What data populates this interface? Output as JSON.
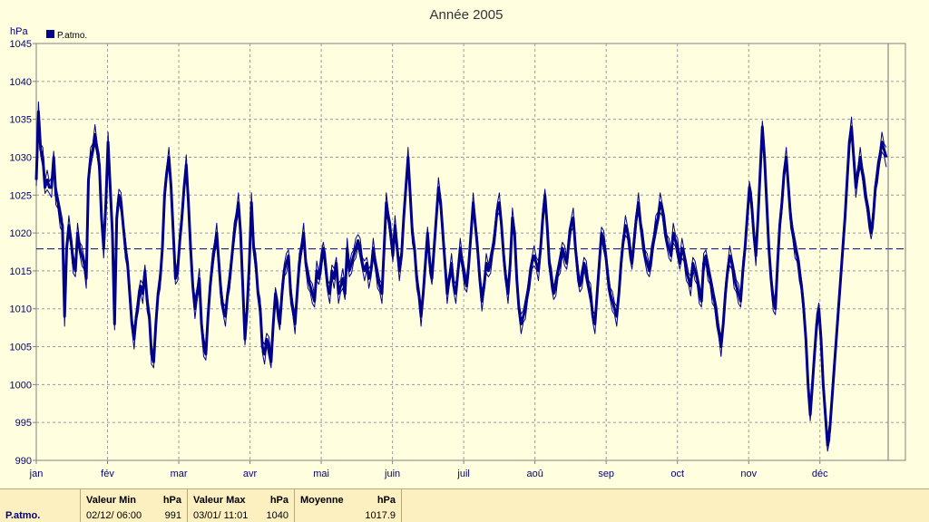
{
  "chart_data": {
    "type": "line",
    "title": "Année 2005",
    "ylabel": "hPa",
    "ylim": [
      990,
      1045
    ],
    "yticks": [
      "990",
      "995",
      "1000",
      "1005",
      "1010",
      "1015",
      "1020",
      "1025",
      "1030",
      "1035",
      "1040",
      "1045"
    ],
    "months": [
      "jan",
      "fév",
      "mar",
      "avr",
      "mai",
      "juin",
      "juil",
      "aoû",
      "sep",
      "oct",
      "nov",
      "déc"
    ],
    "legend": {
      "label": "P.atmo.",
      "position": "top-left"
    },
    "grid": true,
    "mean_line": 1017.9,
    "series": [
      {
        "name": "P.atmo.",
        "color": "#00008b",
        "values": [
          1027,
          1036,
          1031,
          1030,
          1026,
          1027,
          1026,
          1026,
          1030,
          1025,
          1024,
          1022,
          1021,
          1009,
          1018,
          1021,
          1019,
          1016,
          1015,
          1020,
          1018,
          1017,
          1016,
          1014,
          1027,
          1030,
          1031,
          1033,
          1031,
          1029,
          1022,
          1018,
          1024,
          1032,
          1026,
          1020,
          1008,
          1022,
          1025,
          1024,
          1021,
          1018,
          1016,
          1012,
          1008,
          1006,
          1009,
          1011,
          1013,
          1012,
          1015,
          1011,
          1009,
          1004,
          1003,
          1008,
          1012,
          1014,
          1018,
          1025,
          1028,
          1030,
          1026,
          1020,
          1014,
          1015,
          1019,
          1022,
          1026,
          1029,
          1024,
          1018,
          1013,
          1010,
          1012,
          1014,
          1008,
          1005,
          1004,
          1009,
          1013,
          1016,
          1018,
          1020,
          1016,
          1012,
          1010,
          1009,
          1012,
          1014,
          1017,
          1020,
          1022,
          1024,
          1020,
          1013,
          1006,
          1010,
          1016,
          1024,
          1018,
          1016,
          1012,
          1010,
          1005,
          1004,
          1006,
          1005,
          1003,
          1008,
          1012,
          1010,
          1008,
          1012,
          1015,
          1016,
          1017,
          1012,
          1010,
          1008,
          1012,
          1016,
          1018,
          1020,
          1016,
          1014,
          1013,
          1012,
          1011,
          1015,
          1014,
          1016,
          1018,
          1016,
          1013,
          1012,
          1015,
          1014,
          1016,
          1012,
          1013,
          1014,
          1012,
          1018,
          1015,
          1016,
          1017,
          1018,
          1019,
          1018,
          1016,
          1015,
          1016,
          1014,
          1015,
          1018,
          1016,
          1014,
          1013,
          1012,
          1018,
          1024,
          1022,
          1020,
          1017,
          1021,
          1018,
          1015,
          1017,
          1022,
          1026,
          1030,
          1025,
          1020,
          1018,
          1014,
          1012,
          1009,
          1012,
          1016,
          1020,
          1016,
          1014,
          1018,
          1022,
          1026,
          1024,
          1020,
          1016,
          1012,
          1014,
          1016,
          1013,
          1012,
          1015,
          1018,
          1016,
          1014,
          1013,
          1016,
          1020,
          1024,
          1021,
          1018,
          1014,
          1011,
          1013,
          1016,
          1015,
          1016,
          1018,
          1020,
          1023,
          1024,
          1021,
          1017,
          1014,
          1012,
          1016,
          1022,
          1020,
          1014,
          1010,
          1008,
          1009,
          1010,
          1012,
          1014,
          1016,
          1017,
          1016,
          1015,
          1018,
          1022,
          1025,
          1021,
          1016,
          1014,
          1012,
          1013,
          1015,
          1016,
          1018,
          1017,
          1016,
          1019,
          1021,
          1022,
          1018,
          1015,
          1013,
          1014,
          1016,
          1015,
          1013,
          1012,
          1009,
          1008,
          1012,
          1016,
          1020,
          1019,
          1017,
          1014,
          1012,
          1011,
          1010,
          1009,
          1012,
          1016,
          1019,
          1021,
          1020,
          1018,
          1016,
          1019,
          1022,
          1024,
          1021,
          1019,
          1017,
          1016,
          1015,
          1017,
          1019,
          1021,
          1022,
          1024,
          1023,
          1021,
          1019,
          1018,
          1017,
          1020,
          1019,
          1018,
          1016,
          1018,
          1017,
          1015,
          1014,
          1013,
          1016,
          1015,
          1014,
          1012,
          1011,
          1016,
          1017,
          1015,
          1014,
          1012,
          1011,
          1009,
          1007,
          1005,
          1008,
          1012,
          1015,
          1017,
          1016,
          1014,
          1013,
          1012,
          1011,
          1015,
          1018,
          1022,
          1026,
          1024,
          1020,
          1017,
          1022,
          1028,
          1034,
          1030,
          1024,
          1018,
          1014,
          1011,
          1010,
          1016,
          1021,
          1024,
          1028,
          1030,
          1026,
          1022,
          1020,
          1018,
          1017,
          1015,
          1013,
          1010,
          1006,
          1000,
          996,
          1000,
          1004,
          1008,
          1010,
          1006,
          1000,
          996,
          992,
          994,
          998,
          1002,
          1006,
          1010,
          1014,
          1018,
          1022,
          1027,
          1032,
          1034,
          1030,
          1026,
          1028,
          1030,
          1028,
          1026,
          1024,
          1022,
          1020,
          1022,
          1026,
          1028,
          1030,
          1032,
          1031,
          1030
        ]
      },
      {
        "name": "",
        "color": "#00008b",
        "values": []
      },
      {
        "name": "",
        "color": "#00008b",
        "values": []
      }
    ]
  },
  "stats": {
    "name": "P.atmo.",
    "min_header": "Valeur Min",
    "min_unit": "hPa",
    "min_date": "02/12/  06:00",
    "min_value": "991",
    "max_header": "Valeur Max",
    "max_unit": "hPa",
    "max_date": "03/01/  11:01",
    "max_value": "1040",
    "mean_header": "Moyenne",
    "mean_unit": "hPa",
    "mean_value": "1017.9"
  }
}
